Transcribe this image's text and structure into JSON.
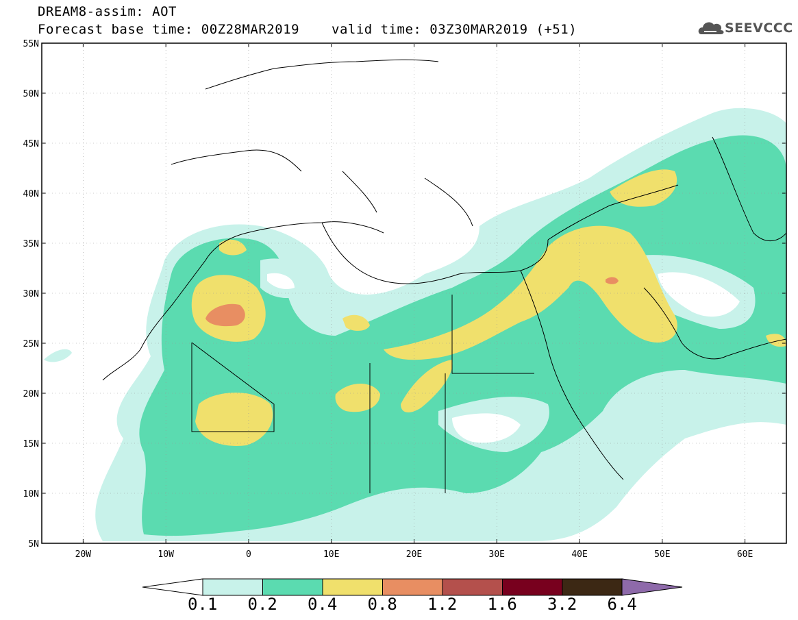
{
  "title": {
    "line1": "DREAM8-assim: AOT",
    "line2": "Forecast base time: 00Z28MAR2019",
    "valid": "valid time: 03Z30MAR2019 (+51)"
  },
  "logo": {
    "text": "SEEVCCC",
    "icon": "cloud-icon"
  },
  "map": {
    "lat_labels": [
      "55N",
      "50N",
      "45N",
      "40N",
      "35N",
      "30N",
      "25N",
      "20N",
      "15N",
      "10N",
      "5N"
    ],
    "lon_labels": [
      "20W",
      "10W",
      "0",
      "10E",
      "20E",
      "30E",
      "40E",
      "50E",
      "60E"
    ],
    "extent": {
      "lon": [
        -25,
        65
      ],
      "lat": [
        5,
        55
      ]
    }
  },
  "colorbar": {
    "levels": [
      "0.1",
      "0.2",
      "0.4",
      "0.8",
      "1.2",
      "1.6",
      "3.2",
      "6.4"
    ],
    "colors": [
      "#c8f2ea",
      "#5bdbb0",
      "#f0e06c",
      "#e88e62",
      "#b4504c",
      "#78001e",
      "#3c2814",
      "#8e6aaa"
    ]
  }
}
